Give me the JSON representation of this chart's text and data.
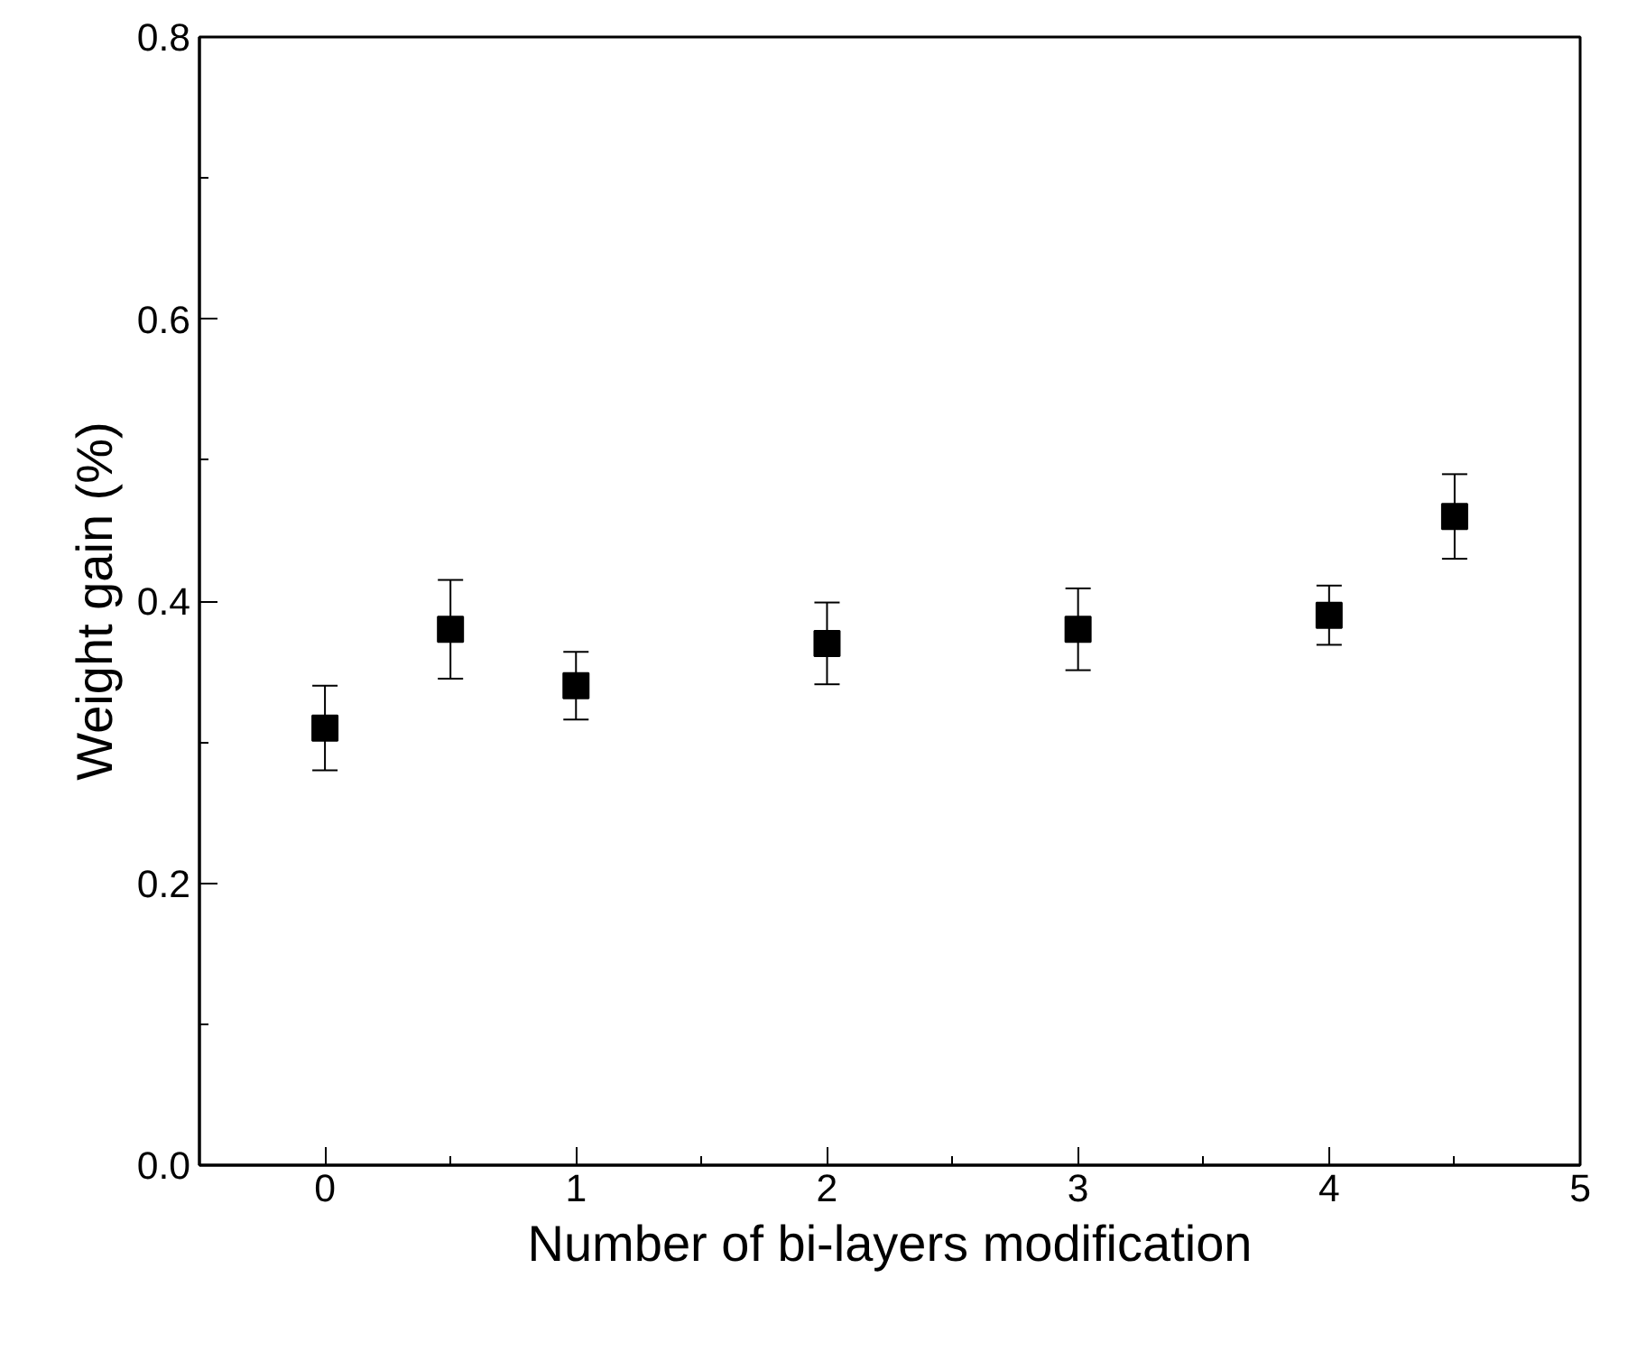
{
  "chart_data": {
    "type": "scatter",
    "xlabel": "Number of bi-layers modification",
    "ylabel": "Weight gain (%)",
    "x": [
      0,
      0.5,
      1,
      2,
      3,
      4,
      4.5
    ],
    "series": [
      {
        "color": "#000000",
        "values": [
          0.31,
          0.38,
          0.34,
          0.37,
          0.38,
          0.39,
          0.46
        ],
        "errors": [
          0.03,
          0.035,
          0.024,
          0.029,
          0.029,
          0.021,
          0.03
        ]
      }
    ],
    "marker": "square",
    "xlim": [
      -0.5,
      5
    ],
    "ylim": [
      0,
      0.8
    ],
    "xticks": [
      0,
      1,
      2,
      3,
      4,
      5
    ],
    "yticks": [
      {
        "value": 0,
        "label": "0.0"
      },
      0.2,
      0.4,
      0.6,
      0.8
    ],
    "tick_labels": true
  }
}
